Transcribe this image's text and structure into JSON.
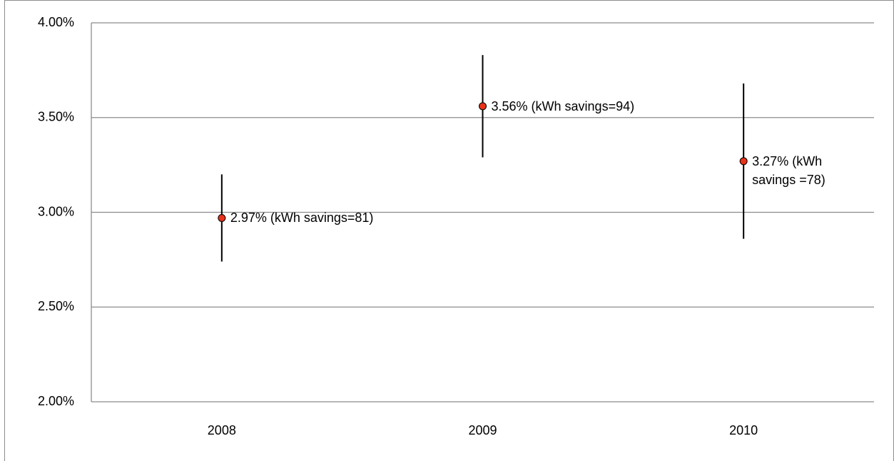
{
  "chart_data": {
    "type": "errorbar",
    "categories": [
      "2008",
      "2009",
      "2010"
    ],
    "values": [
      2.97,
      3.56,
      3.27
    ],
    "errors": [
      0.23,
      0.27,
      0.41
    ],
    "value_labels": [
      "2.97%  (kWh savings=81)",
      "3.56% (kWh savings=94)",
      "3.27% (kWh savings =78)"
    ],
    "color": "#e8321a",
    "ylim": [
      2,
      4
    ],
    "yticks": [
      {
        "value": 2,
        "label": "2.00%"
      },
      {
        "value": 2.5,
        "label": "2.50%"
      },
      {
        "value": 3,
        "label": "3.00%"
      },
      {
        "value": 3.5,
        "label": "3.50%"
      },
      {
        "value": 4,
        "label": "4.00%"
      }
    ],
    "grid": true
  }
}
